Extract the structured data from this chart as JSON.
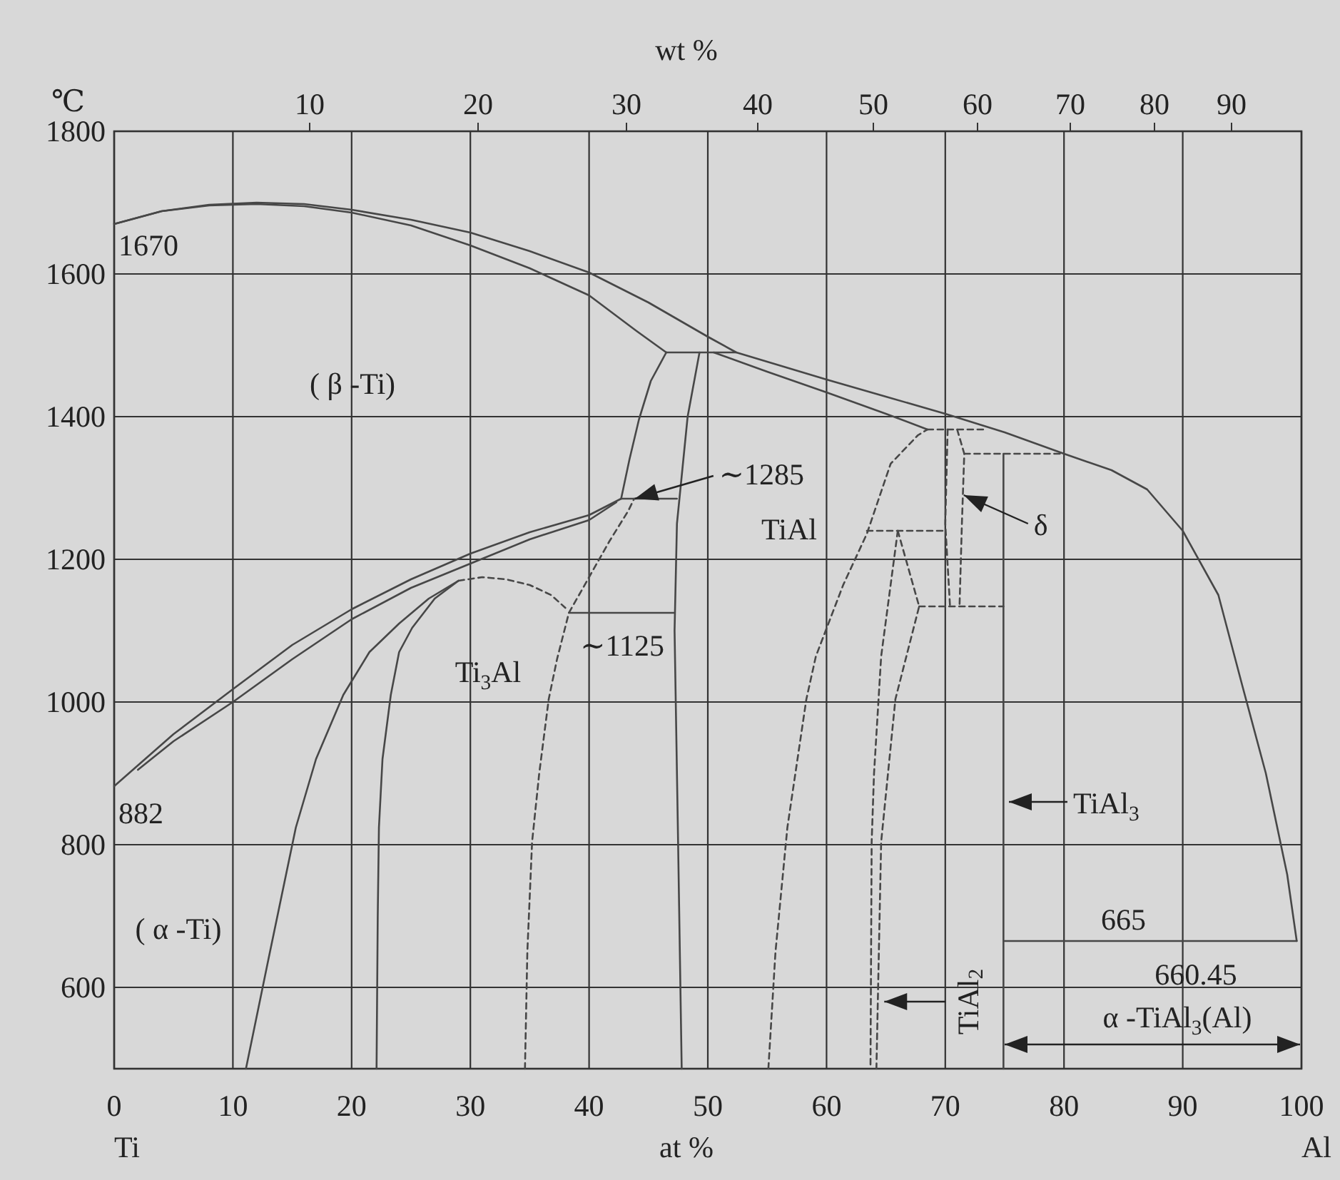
{
  "chart_data": {
    "type": "line",
    "xlabel": "at %",
    "x2label": "wt %",
    "ylabel": "℃",
    "xlim": [
      0,
      100
    ],
    "xticks": [
      0,
      10,
      20,
      30,
      40,
      50,
      60,
      70,
      80,
      90,
      100
    ],
    "ylim": [
      486,
      1800
    ],
    "yticks": [
      600,
      800,
      1000,
      1200,
      1400,
      1600,
      1800
    ],
    "grid": true,
    "series": [
      {
        "color": "#474747",
        "x": [
          0,
          4,
          8,
          12,
          16,
          20,
          25,
          30,
          35,
          40,
          45,
          50,
          52.4,
          56,
          60,
          65,
          70,
          75,
          80,
          84,
          87,
          90,
          93,
          95,
          97,
          98.8,
          99.6
        ],
        "values": [
          1670,
          1688,
          1697,
          1700,
          1698,
          1690,
          1676,
          1658,
          1632,
          1602,
          1560,
          1512,
          1490,
          1472,
          1452,
          1428,
          1404,
          1378,
          1348,
          1325,
          1298,
          1240,
          1150,
          1024,
          900,
          758,
          665
        ]
      },
      {
        "color": "#474747",
        "x": [
          0,
          4,
          8,
          12,
          16,
          20,
          25,
          30,
          35,
          40,
          44,
          46.5
        ],
        "values": [
          1670,
          1688,
          1696,
          1698,
          1695,
          1686,
          1668,
          1640,
          1608,
          1570,
          1520,
          1490
        ]
      },
      {
        "color": "#474747",
        "x": [
          46.5,
          52.4
        ],
        "values": [
          1490,
          1490
        ]
      },
      {
        "color": "#474747",
        "x": [
          50.5,
          55,
          60,
          65,
          68.5
        ],
        "values": [
          1490,
          1463,
          1434,
          1404,
          1382
        ]
      },
      {
        "color": "#474747",
        "line_style": "dashed",
        "x": [
          68.5,
          73.4
        ],
        "values": [
          1382,
          1382
        ]
      },
      {
        "color": "#474747",
        "x": [
          46.5,
          45.2,
          44.2,
          43.4,
          42.7
        ],
        "values": [
          1490,
          1450,
          1396,
          1340,
          1285
        ]
      },
      {
        "color": "#474747",
        "x": [
          49.3,
          48.3,
          47.4,
          47.2,
          47.3,
          47.5,
          47.8
        ],
        "values": [
          1490,
          1400,
          1250,
          1100,
          1000,
          800,
          486
        ]
      },
      {
        "color": "#474747",
        "x": [
          42.7,
          47.4
        ],
        "values": [
          1285,
          1285
        ]
      },
      {
        "color": "#474747",
        "x": [
          0,
          5,
          10,
          15,
          20,
          25,
          30,
          35,
          40,
          42.7
        ],
        "values": [
          882,
          955,
          1018,
          1080,
          1130,
          1172,
          1208,
          1238,
          1262,
          1285
        ]
      },
      {
        "color": "#474747",
        "x": [
          2,
          5,
          10,
          15,
          20,
          25,
          30,
          35,
          40,
          42.3
        ],
        "values": [
          905,
          945,
          1000,
          1060,
          1116,
          1160,
          1194,
          1228,
          1255,
          1280
        ]
      },
      {
        "color": "#474747",
        "x": [
          11.1,
          13,
          15.3,
          17,
          19.3,
          21.5,
          24,
          26.5,
          29
        ],
        "values": [
          486,
          640,
          824,
          920,
          1010,
          1070,
          1110,
          1145,
          1170
        ]
      },
      {
        "color": "#474747",
        "x": [
          22.1,
          22.2,
          22.3,
          22.6,
          23.3,
          24,
          25.1,
          27,
          29
        ],
        "values": [
          486,
          700,
          824,
          920,
          1010,
          1070,
          1104,
          1145,
          1170
        ]
      },
      {
        "color": "#474747",
        "line_style": "dashed",
        "x": [
          29,
          31,
          33,
          35,
          36.8,
          38
        ],
        "values": [
          1170,
          1175,
          1172,
          1164,
          1150,
          1132
        ]
      },
      {
        "color": "#474747",
        "x": [
          38.3,
          47.2
        ],
        "values": [
          1125,
          1125
        ]
      },
      {
        "color": "#474747",
        "line_style": "dashed",
        "x": [
          34.6,
          34.8,
          35.2,
          35.8,
          36.6,
          37.3,
          38.3,
          40,
          41.7,
          43.3,
          43.8
        ],
        "values": [
          486,
          650,
          804,
          900,
          1004,
          1060,
          1125,
          1175,
          1225,
          1268,
          1285
        ]
      },
      {
        "color": "#474747",
        "line_style": "dashed",
        "x": [
          55.1,
          55.7,
          56.7,
          58.3,
          59.1,
          61.4,
          63.4,
          65.4,
          67.7,
          68.5
        ],
        "values": [
          486,
          650,
          824,
          1004,
          1064,
          1164,
          1236,
          1334,
          1374,
          1382
        ]
      },
      {
        "color": "#474747",
        "line_style": "dashed",
        "x": [
          63.4,
          69.8
        ],
        "values": [
          1240,
          1240
        ]
      },
      {
        "color": "#474747",
        "line_style": "dashed",
        "x": [
          66,
          64.6,
          64,
          63.8,
          63.7
        ],
        "values": [
          1240,
          1064,
          900,
          804,
          486
        ]
      },
      {
        "color": "#474747",
        "line_style": "dashed",
        "x": [
          66,
          67.8,
          65.8,
          64.6,
          64.2
        ],
        "values": [
          1240,
          1134,
          1004,
          804,
          486
        ]
      },
      {
        "color": "#474747",
        "line_style": "dashed",
        "x": [
          67.8,
          74.9
        ],
        "values": [
          1134,
          1134
        ]
      },
      {
        "color": "#474747",
        "line_style": "dashed",
        "x": [
          70.2,
          70,
          70.4
        ],
        "values": [
          1382,
          1250,
          1134
        ]
      },
      {
        "color": "#474747",
        "line_style": "dashed",
        "x": [
          71,
          71.6,
          71.4,
          71.2
        ],
        "values": [
          1382,
          1348,
          1250,
          1134
        ]
      },
      {
        "color": "#474747",
        "line_style": "dashed",
        "x": [
          71.6,
          80
        ],
        "values": [
          1348,
          1348
        ]
      },
      {
        "color": "#474747",
        "x": [
          74.9,
          74.9
        ],
        "values": [
          1348,
          486
        ]
      },
      {
        "color": "#474747",
        "x": [
          75,
          99.6
        ],
        "values": [
          665,
          665
        ]
      }
    ],
    "annotations": [
      {
        "text": "1670",
        "x": 0,
        "y": 1670
      },
      {
        "text": "882",
        "x": 0,
        "y": 882
      },
      "( β -Ti)",
      "( α -Ti)",
      "Ti$_{3}$Al",
      "TiAl",
      {
        "text": "∼1285",
        "x": 43.5,
        "y": 1285
      },
      {
        "text": "∼1125",
        "x": 38.3,
        "y": 1125
      },
      {
        "text": "δ",
        "x": 71.2,
        "y": 1290
      },
      {
        "text": "TiAl$_{3}$",
        "x": 75,
        "y": 860
      },
      {
        "text": "TiAl$_{2}$",
        "x": 64.5,
        "y": 580
      },
      {
        "text": "665",
        "x": 85,
        "y": 665
      },
      "660.45",
      "Ti",
      "Al",
      "10",
      "20",
      "30",
      "40",
      "50",
      "60",
      "70",
      "80",
      "90",
      "α -TiAl$_{3}$(Al)"
    ]
  }
}
